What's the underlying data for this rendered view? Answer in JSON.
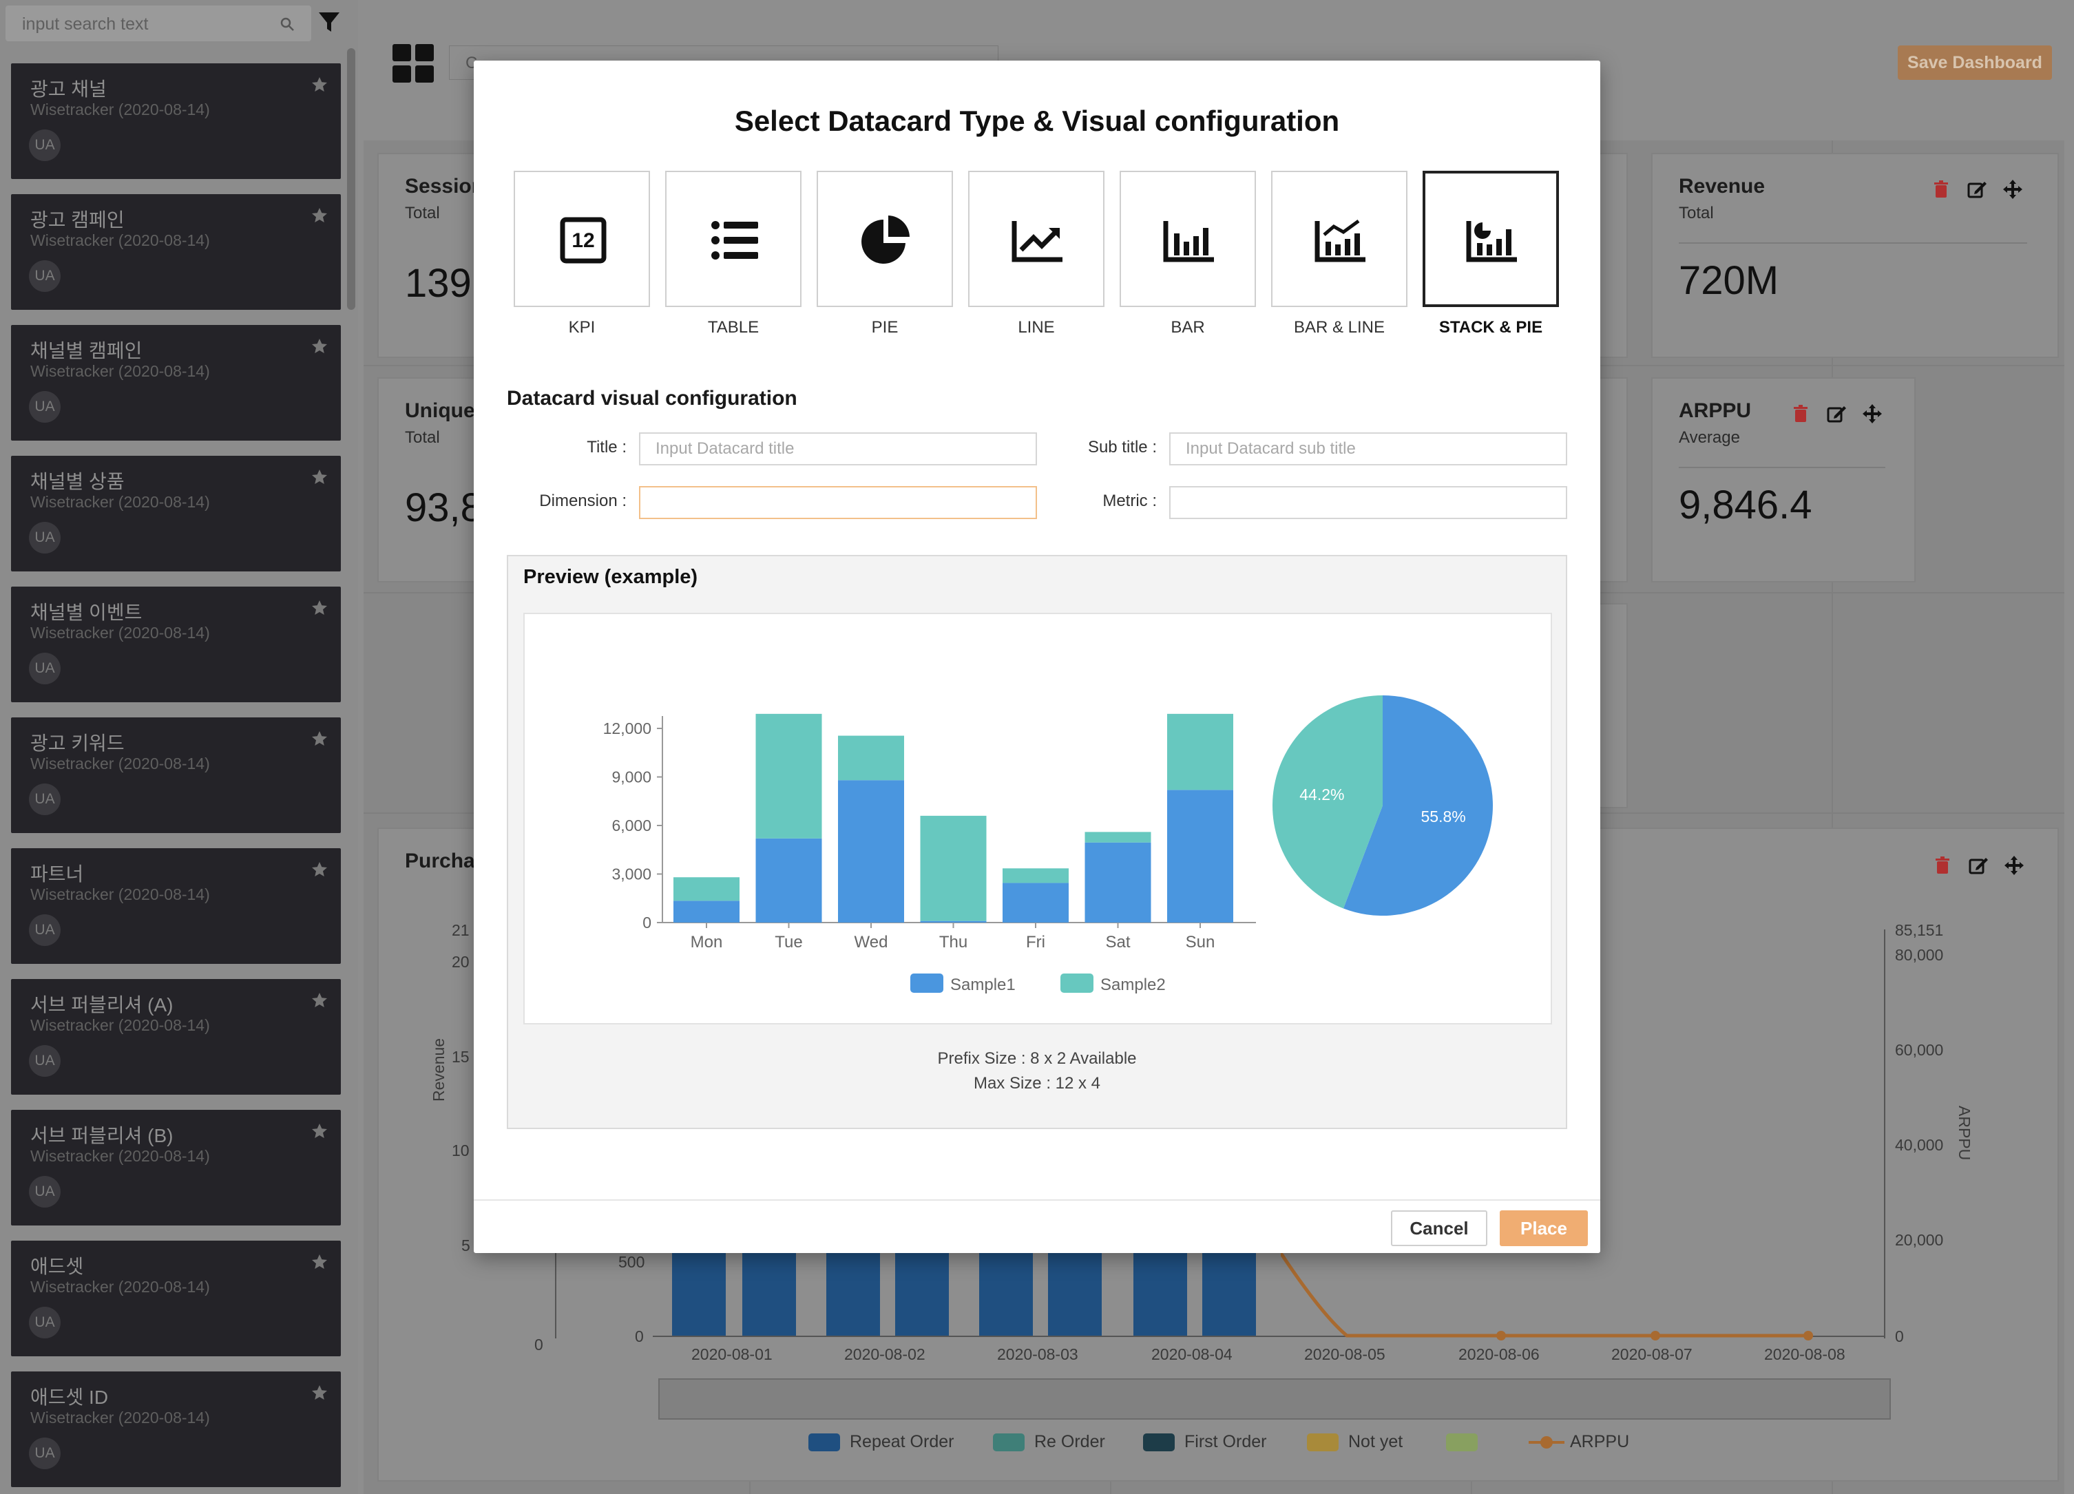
{
  "sidebar": {
    "search_placeholder": "input search text",
    "items": [
      {
        "name": "광고 채널",
        "source": "Wisetracker (2020-08-14)",
        "badge": "UA"
      },
      {
        "name": "광고 캠페인",
        "source": "Wisetracker (2020-08-14)",
        "badge": "UA"
      },
      {
        "name": "채널별 캠페인",
        "source": "Wisetracker (2020-08-14)",
        "badge": "UA"
      },
      {
        "name": "채널별 상품",
        "source": "Wisetracker (2020-08-14)",
        "badge": "UA"
      },
      {
        "name": "채널별 이벤트",
        "source": "Wisetracker (2020-08-14)",
        "badge": "UA"
      },
      {
        "name": "광고 키워드",
        "source": "Wisetracker (2020-08-14)",
        "badge": "UA"
      },
      {
        "name": "파트너",
        "source": "Wisetracker (2020-08-14)",
        "badge": "UA"
      },
      {
        "name": "서브 퍼블리셔 (A)",
        "source": "Wisetracker (2020-08-14)",
        "badge": "UA"
      },
      {
        "name": "서브 퍼블리셔 (B)",
        "source": "Wisetracker (2020-08-14)",
        "badge": "UA"
      },
      {
        "name": "애드셋",
        "source": "Wisetracker (2020-08-14)",
        "badge": "UA"
      },
      {
        "name": "애드셋 ID",
        "source": "Wisetracker (2020-08-14)",
        "badge": "UA"
      }
    ]
  },
  "dashboard": {
    "title_value": "C",
    "save_label": "Save Dashboard",
    "cards": {
      "sessions": {
        "title": "Session",
        "sub": "Total",
        "value": "139"
      },
      "unique": {
        "title": "Unique",
        "sub": "Total",
        "value": "93,8"
      },
      "revenue": {
        "title": "Revenue",
        "sub": "Total",
        "value": "720M"
      },
      "arppu": {
        "title": "ARPPU",
        "sub": "Average",
        "value": "9,846.4"
      },
      "purchase": {
        "title": "Purcha"
      }
    },
    "bg_chart": {
      "left_ticks": [
        "21",
        "20",
        "15",
        "10",
        "5"
      ],
      "left_ticks_inner": [
        "500",
        "0"
      ],
      "left_zero": "0",
      "ylabel_left": "Revenue",
      "ylabel_right": "ARPPU",
      "right_ticks": [
        "85,151",
        "80,000",
        "60,000",
        "40,000",
        "20,000",
        "0"
      ],
      "dates": [
        "2020-08-01",
        "2020-08-02",
        "2020-08-03",
        "2020-08-04",
        "2020-08-05",
        "2020-08-06",
        "2020-08-07",
        "2020-08-08"
      ],
      "legend": [
        "Repeat Order",
        "Re Order",
        "First Order",
        "Not yet",
        "",
        "ARPPU"
      ],
      "legend_colors": [
        "#1f4f80",
        "#3f7f78",
        "#1d3c48",
        "#a88a3a",
        "#88a060",
        "#a86a30"
      ]
    }
  },
  "modal": {
    "title": "Select Datacard Type & Visual configuration",
    "types": [
      {
        "label": "KPI",
        "icon": "kpi-icon",
        "selected": false
      },
      {
        "label": "TABLE",
        "icon": "table-icon",
        "selected": false
      },
      {
        "label": "PIE",
        "icon": "pie-icon",
        "selected": false
      },
      {
        "label": "LINE",
        "icon": "line-icon",
        "selected": false
      },
      {
        "label": "BAR",
        "icon": "bar-icon",
        "selected": false
      },
      {
        "label": "BAR & LINE",
        "icon": "bar-line-icon",
        "selected": false
      },
      {
        "label": "STACK & PIE",
        "icon": "stack-pie-icon",
        "selected": true
      }
    ],
    "kpi_icon_text": "12",
    "config_heading": "Datacard visual configuration",
    "fields": {
      "title_label": "Title :",
      "title_placeholder": "Input Datacard title",
      "subtitle_label": "Sub title :",
      "subtitle_placeholder": "Input Datacard sub title",
      "dimension_label": "Dimension :",
      "metric_label": "Metric :"
    },
    "preview_heading": "Preview (example)",
    "size_note_1": "Prefix Size : 8 x 2 Available",
    "size_note_2": "Max Size : 12 x 4",
    "cancel_label": "Cancel",
    "place_label": "Place"
  },
  "colors": {
    "sample1": "#4a96df",
    "sample2": "#67c8bf",
    "accent": "#f0ad72"
  },
  "chart_data": {
    "type": "bar",
    "stacked": true,
    "categories": [
      "Mon",
      "Tue",
      "Wed",
      "Thu",
      "Fri",
      "Sat",
      "Sun"
    ],
    "series": [
      {
        "name": "Sample1",
        "values": [
          1350,
          5200,
          8800,
          100,
          2450,
          4950,
          8200
        ]
      },
      {
        "name": "Sample2",
        "values": [
          1450,
          7700,
          2750,
          6500,
          900,
          650,
          4700
        ]
      }
    ],
    "yticks": [
      "0",
      "3,000",
      "6,000",
      "9,000",
      "12,000"
    ],
    "ylim": [
      0,
      13000
    ],
    "legend": "bottom",
    "pie": {
      "slices": [
        {
          "name": "Sample1",
          "value": 55.8,
          "label": "55.8%"
        },
        {
          "name": "Sample2",
          "value": 44.2,
          "label": "44.2%"
        }
      ]
    }
  }
}
